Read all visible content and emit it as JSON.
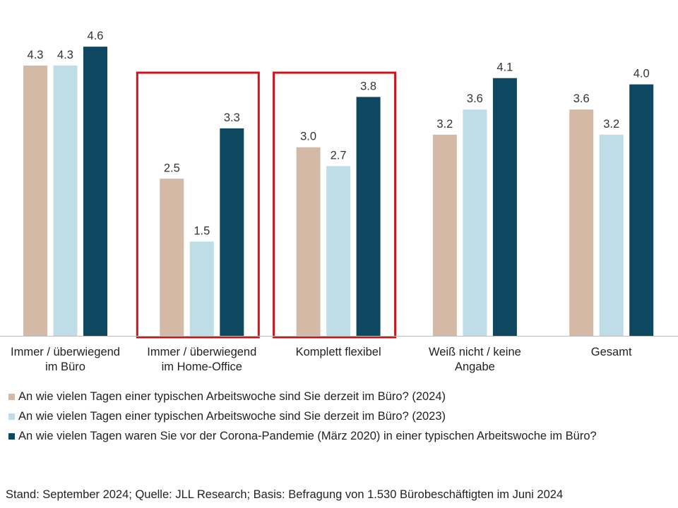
{
  "chart_data": {
    "type": "bar",
    "categories": [
      [
        "Immer / überwiegend",
        "im Büro"
      ],
      [
        "Immer / überwiegend",
        "im Home-Office"
      ],
      [
        "Komplett flexibel"
      ],
      [
        "Weiß nicht / keine",
        "Angabe"
      ],
      [
        "Gesamt"
      ]
    ],
    "series": [
      {
        "name": "An wie vielen Tagen einer typischen Arbeitswoche sind Sie derzeit im Büro? (2024)",
        "values": [
          4.3,
          2.5,
          3.0,
          3.2,
          3.6
        ],
        "labels": [
          "4.3",
          "2.5",
          "3.0",
          "3.2",
          "3.6"
        ],
        "color": "#d3b9a6"
      },
      {
        "name": "An wie vielen Tagen einer typischen Arbeitswoche sind Sie derzeit im Büro? (2023)",
        "values": [
          4.3,
          1.5,
          2.7,
          3.6,
          3.2
        ],
        "labels": [
          "4.3",
          "1.5",
          "2.7",
          "3.6",
          "3.2"
        ],
        "color": "#bfdde7"
      },
      {
        "name": "An wie vielen Tagen waren Sie vor der Corona-Pandemie (März 2020) in einer typischen Arbeitswoche im Büro?",
        "values": [
          4.6,
          3.3,
          3.8,
          4.1,
          4.0
        ],
        "labels": [
          "4.6",
          "3.3",
          "3.8",
          "4.1",
          "4.0"
        ],
        "color": "#0e4760"
      }
    ],
    "ylim": [
      0,
      5
    ],
    "highlighted_categories": [
      1,
      2
    ],
    "highlight_color": "#d0121b",
    "grid": false,
    "legend_position": "bottom-left"
  },
  "footnote": "Stand: September 2024; Quelle: JLL Research; Basis: Befragung von 1.530 Bürobeschäftigten im Juni 2024"
}
